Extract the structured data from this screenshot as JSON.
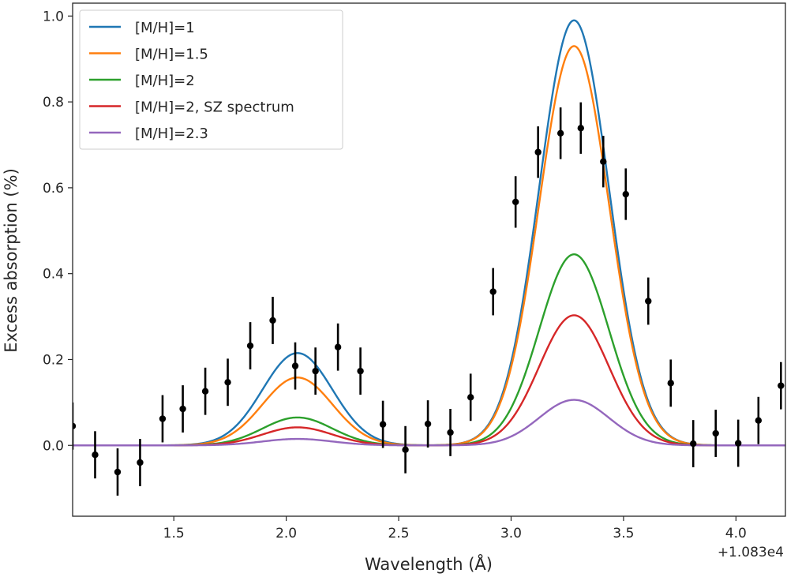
{
  "chart_data": {
    "type": "line",
    "xlabel": "Wavelength (Å)",
    "ylabel": "Excess absorption (%)",
    "x_offset_label": "+1.083e4",
    "xlim": [
      1.05,
      4.22
    ],
    "ylim": [
      -0.165,
      1.03
    ],
    "x_ticks": [
      {
        "value": 1.5,
        "label": "1.5"
      },
      {
        "value": 2.0,
        "label": "2.0"
      },
      {
        "value": 2.5,
        "label": "2.5"
      },
      {
        "value": 3.0,
        "label": "3.0"
      },
      {
        "value": 3.5,
        "label": "3.5"
      },
      {
        "value": 4.0,
        "label": "4.0"
      }
    ],
    "y_ticks": [
      {
        "value": 0.0,
        "label": "0.0"
      },
      {
        "value": 0.2,
        "label": "0.2"
      },
      {
        "value": 0.4,
        "label": "0.4"
      },
      {
        "value": 0.6,
        "label": "0.6"
      },
      {
        "value": 0.8,
        "label": "0.8"
      },
      {
        "value": 1.0,
        "label": "1.0"
      }
    ],
    "legend_position": "top-left",
    "series": [
      {
        "name": "[M/H]=1",
        "color": "#1f77b4",
        "peak1": 0.215,
        "peak2": 0.99
      },
      {
        "name": "[M/H]=1.5",
        "color": "#ff7f0e",
        "peak1": 0.158,
        "peak2": 0.93
      },
      {
        "name": "[M/H]=2",
        "color": "#2ca02c",
        "peak1": 0.065,
        "peak2": 0.445
      },
      {
        "name": "[M/H]=2, SZ spectrum",
        "color": "#d62728",
        "peak1": 0.042,
        "peak2": 0.303
      },
      {
        "name": "[M/H]=2.3",
        "color": "#9467bd",
        "peak1": 0.015,
        "peak2": 0.106
      }
    ],
    "model_shape": {
      "center1": 2.05,
      "center2": 3.28,
      "sigma": 0.155
    },
    "observations": {
      "color": "#000000",
      "points": [
        {
          "x": 1.05,
          "y": 0.045,
          "err": 0.055
        },
        {
          "x": 1.15,
          "y": -0.022,
          "err": 0.055
        },
        {
          "x": 1.25,
          "y": -0.062,
          "err": 0.055
        },
        {
          "x": 1.35,
          "y": -0.04,
          "err": 0.055
        },
        {
          "x": 1.45,
          "y": 0.062,
          "err": 0.055
        },
        {
          "x": 1.54,
          "y": 0.085,
          "err": 0.055
        },
        {
          "x": 1.64,
          "y": 0.126,
          "err": 0.055
        },
        {
          "x": 1.74,
          "y": 0.147,
          "err": 0.055
        },
        {
          "x": 1.84,
          "y": 0.232,
          "err": 0.055
        },
        {
          "x": 1.94,
          "y": 0.291,
          "err": 0.055
        },
        {
          "x": 2.04,
          "y": 0.185,
          "err": 0.055
        },
        {
          "x": 2.13,
          "y": 0.173,
          "err": 0.055
        },
        {
          "x": 2.23,
          "y": 0.229,
          "err": 0.055
        },
        {
          "x": 2.33,
          "y": 0.173,
          "err": 0.055
        },
        {
          "x": 2.43,
          "y": 0.049,
          "err": 0.055
        },
        {
          "x": 2.53,
          "y": -0.01,
          "err": 0.055
        },
        {
          "x": 2.63,
          "y": 0.05,
          "err": 0.055
        },
        {
          "x": 2.73,
          "y": 0.03,
          "err": 0.055
        },
        {
          "x": 2.82,
          "y": 0.112,
          "err": 0.055
        },
        {
          "x": 2.92,
          "y": 0.358,
          "err": 0.055
        },
        {
          "x": 3.02,
          "y": 0.567,
          "err": 0.06
        },
        {
          "x": 3.12,
          "y": 0.683,
          "err": 0.06
        },
        {
          "x": 3.22,
          "y": 0.727,
          "err": 0.06
        },
        {
          "x": 3.31,
          "y": 0.739,
          "err": 0.06
        },
        {
          "x": 3.41,
          "y": 0.661,
          "err": 0.06
        },
        {
          "x": 3.51,
          "y": 0.585,
          "err": 0.06
        },
        {
          "x": 3.61,
          "y": 0.336,
          "err": 0.055
        },
        {
          "x": 3.71,
          "y": 0.145,
          "err": 0.055
        },
        {
          "x": 3.81,
          "y": 0.004,
          "err": 0.055
        },
        {
          "x": 3.91,
          "y": 0.028,
          "err": 0.055
        },
        {
          "x": 4.01,
          "y": 0.005,
          "err": 0.055
        },
        {
          "x": 4.1,
          "y": 0.058,
          "err": 0.055
        },
        {
          "x": 4.2,
          "y": 0.139,
          "err": 0.055
        }
      ]
    }
  }
}
